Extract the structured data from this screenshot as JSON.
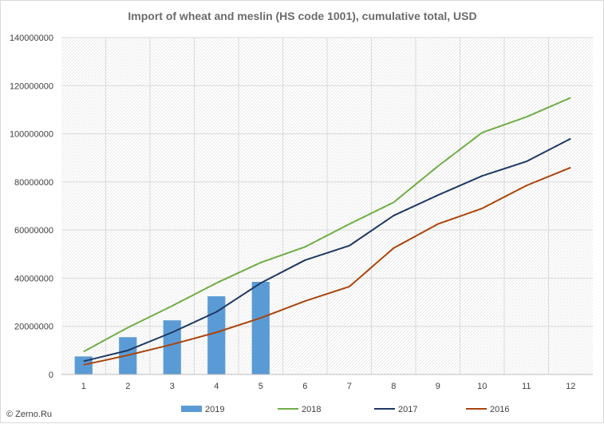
{
  "credit": "© Zerno.Ru",
  "chart_data": {
    "type": "bar+line",
    "title": "Import of wheat and meslin (HS code 1001), cumulative total, USD",
    "xlabel": "",
    "ylabel": "",
    "categories": [
      "1",
      "2",
      "3",
      "4",
      "5",
      "6",
      "7",
      "8",
      "9",
      "10",
      "11",
      "12"
    ],
    "ylim": [
      0,
      140000000
    ],
    "yticks": [
      0,
      20000000,
      40000000,
      60000000,
      80000000,
      100000000,
      120000000,
      140000000
    ],
    "ytick_labels": [
      "0",
      "20000000",
      "40000000",
      "60000000",
      "80000000",
      "100000000",
      "120000000",
      "140000000"
    ],
    "grid": true,
    "legend_position": "bottom",
    "series": [
      {
        "name": "2019",
        "type": "bar",
        "color": "#5b9bd5",
        "values": [
          7500000,
          15500000,
          22500000,
          32500000,
          38500000,
          null,
          null,
          null,
          null,
          null,
          null,
          null
        ]
      },
      {
        "name": "2018",
        "type": "line",
        "color": "#70ad47",
        "values": [
          9500000,
          19500000,
          28500000,
          38000000,
          46500000,
          53000000,
          62500000,
          71500000,
          86500000,
          100500000,
          107000000,
          115000000
        ]
      },
      {
        "name": "2017",
        "type": "line",
        "color": "#1f3864",
        "values": [
          5500000,
          10000000,
          17500000,
          26000000,
          38000000,
          47500000,
          53500000,
          66000000,
          74500000,
          82500000,
          88500000,
          98000000
        ]
      },
      {
        "name": "2016",
        "type": "line",
        "color": "#a9450c",
        "values": [
          4000000,
          8000000,
          12500000,
          17500000,
          23500000,
          30500000,
          36500000,
          52500000,
          62500000,
          69000000,
          78500000,
          86000000
        ]
      }
    ]
  }
}
